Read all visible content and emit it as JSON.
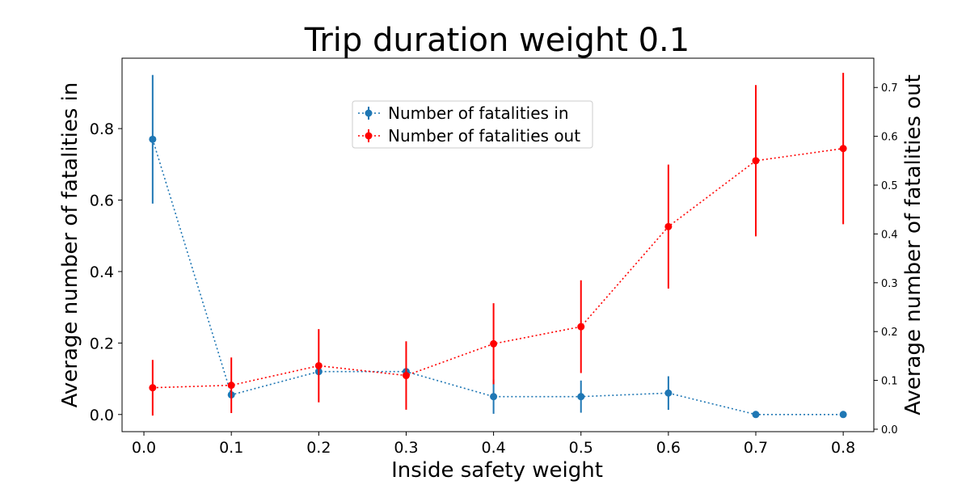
{
  "chart_data": {
    "type": "line",
    "title": "Trip duration weight 0.1",
    "xlabel": "Inside safety weight",
    "ylabel_left": "Average number of fatalities in",
    "ylabel_right": "Average number of fatalities out",
    "x": [
      0.01,
      0.1,
      0.2,
      0.3,
      0.4,
      0.5,
      0.6,
      0.7,
      0.8
    ],
    "x_ticks": [
      "0.0",
      "0.1",
      "0.2",
      "0.3",
      "0.4",
      "0.5",
      "0.6",
      "0.7",
      "0.8"
    ],
    "x_tick_values": [
      0.0,
      0.1,
      0.2,
      0.3,
      0.4,
      0.5,
      0.6,
      0.7,
      0.8
    ],
    "y_left_ticks": [
      "0.0",
      "0.2",
      "0.4",
      "0.6",
      "0.8"
    ],
    "y_left_tick_values": [
      0.0,
      0.2,
      0.4,
      0.6,
      0.8
    ],
    "y_right_ticks": [
      "0.0",
      "0.1",
      "0.2",
      "0.3",
      "0.4",
      "0.5",
      "0.6",
      "0.7"
    ],
    "y_right_tick_values": [
      0.0,
      0.1,
      0.2,
      0.3,
      0.4,
      0.5,
      0.6,
      0.7
    ],
    "xlim": [
      -0.025,
      0.835
    ],
    "ylim_left": [
      -0.048,
      0.997
    ],
    "ylim_right": [
      -0.005,
      0.76
    ],
    "grid": false,
    "legend_position": "top-center",
    "series": [
      {
        "name": "Number of fatalities in",
        "axis": "left",
        "color": "#1f77b4",
        "values": [
          0.77,
          0.055,
          0.12,
          0.12,
          0.05,
          0.05,
          0.06,
          0.0,
          0.0
        ],
        "errors": [
          0.18,
          0.0,
          0.0,
          0.0,
          0.048,
          0.045,
          0.047,
          0.0,
          0.0
        ]
      },
      {
        "name": "Number of fatalities out",
        "axis": "right",
        "color": "#ff0000",
        "values": [
          0.085,
          0.09,
          0.13,
          0.11,
          0.175,
          0.21,
          0.415,
          0.55,
          0.575
        ],
        "errors": [
          0.057,
          0.057,
          0.075,
          0.07,
          0.083,
          0.095,
          0.127,
          0.155,
          0.155
        ]
      }
    ]
  }
}
